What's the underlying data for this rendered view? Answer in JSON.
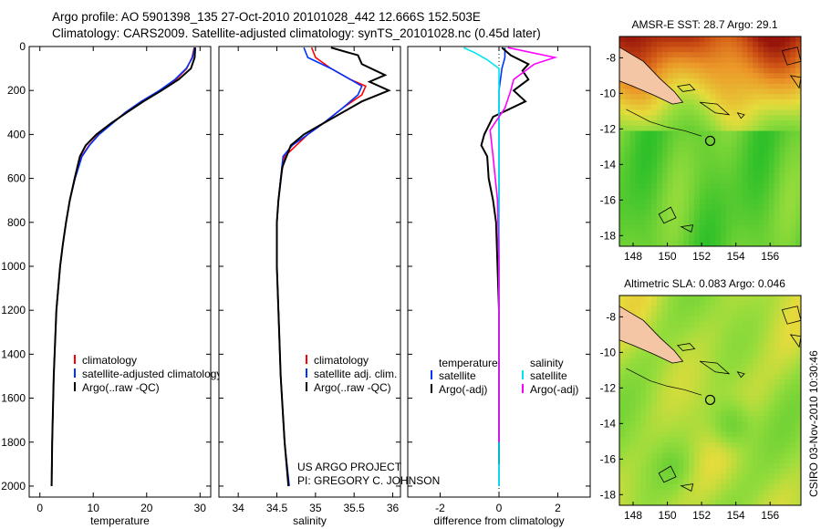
{
  "header": {
    "line1": "Argo profile: AO 5901398_135 27-Oct-2010 20101028_442 12.666S 152.503E",
    "line2": "Climatology: CARS2009. Satellite-adjusted climatology: synTS_20101028.nc (0.45d later)"
  },
  "credit": {
    "line1": "US ARGO PROJECT",
    "line2": "PI: GREGORY C. JOHNSON"
  },
  "side_stamp": "CSIRO 03-Nov-2010 10:30:46",
  "colors": {
    "climatology": "#ff0000",
    "satellite": "#0033ff",
    "argo": "#000000",
    "sal_satellite": "#00e5ee",
    "sal_argo": "#ff00ff",
    "land": "#f5c6a5",
    "marker": "#000000"
  },
  "chart_data": [
    {
      "id": "temperature",
      "type": "line",
      "xlabel": "temperature",
      "ylabel": "",
      "xlim": [
        -2,
        32
      ],
      "ylim": [
        2050,
        0
      ],
      "xticks": [
        0,
        10,
        20,
        30
      ],
      "yticks": [
        0,
        200,
        400,
        600,
        800,
        1000,
        1200,
        1400,
        1600,
        1800,
        2000
      ],
      "legend": [
        "climatology",
        "satellite-adjusted climatology",
        "Argo(..raw -QC)"
      ],
      "legend_placement": "lower-left",
      "series": [
        {
          "name": "climatology",
          "color": "#ff0000",
          "x": [
            28.9,
            28.5,
            27.5,
            25.5,
            22.5,
            19.0,
            16.0,
            13.5,
            11.0,
            9.2,
            7.8,
            6.6,
            5.6,
            4.9,
            4.3,
            3.8,
            3.1,
            2.6,
            2.3,
            2.2
          ],
          "y": [
            5,
            50,
            100,
            150,
            200,
            250,
            300,
            350,
            400,
            450,
            500,
            600,
            700,
            800,
            900,
            1000,
            1200,
            1500,
            1800,
            1950
          ]
        },
        {
          "name": "satellite-adjusted climatology",
          "color": "#0033ff",
          "x": [
            29.0,
            28.6,
            27.4,
            25.3,
            22.4,
            19.0,
            16.0,
            13.6,
            11.1,
            9.3,
            7.9,
            6.6,
            5.6,
            4.9,
            4.3,
            3.8,
            3.1,
            2.6,
            2.3,
            2.2
          ],
          "y": [
            5,
            50,
            100,
            150,
            200,
            250,
            300,
            350,
            400,
            450,
            500,
            600,
            700,
            800,
            900,
            1000,
            1200,
            1500,
            1800,
            2000
          ]
        },
        {
          "name": "Argo(..raw -QC)",
          "color": "#000000",
          "x": [
            29.1,
            29.0,
            28.3,
            26.0,
            22.8,
            19.4,
            16.3,
            13.3,
            10.6,
            8.6,
            7.5,
            6.5,
            5.6,
            4.9,
            4.3,
            3.8,
            3.1,
            2.6,
            2.3,
            2.2
          ],
          "y": [
            5,
            50,
            100,
            150,
            200,
            250,
            300,
            350,
            400,
            450,
            500,
            600,
            700,
            800,
            900,
            1000,
            1200,
            1500,
            1800,
            2000
          ]
        }
      ]
    },
    {
      "id": "salinity",
      "type": "line",
      "xlabel": "salinity",
      "ylabel": "",
      "xlim": [
        33.75,
        36.1
      ],
      "ylim": [
        2050,
        0
      ],
      "xticks": [
        34,
        34.5,
        35,
        35.5,
        36
      ],
      "yticks": [
        0,
        200,
        400,
        600,
        800,
        1000,
        1200,
        1400,
        1600,
        1800,
        2000
      ],
      "legend": [
        "climatology",
        "satellite adj. clim.",
        "Argo(..raw -QC)"
      ],
      "legend_placement": "lower-right",
      "series": [
        {
          "name": "climatology",
          "color": "#ff0000",
          "x": [
            34.95,
            35.0,
            35.2,
            35.45,
            35.65,
            35.6,
            35.35,
            35.1,
            34.9,
            34.75,
            34.6,
            34.55,
            34.52,
            34.5,
            34.5,
            34.52,
            34.55,
            34.6,
            34.65
          ],
          "y": [
            5,
            50,
            100,
            150,
            180,
            220,
            280,
            350,
            400,
            450,
            500,
            600,
            700,
            800,
            1000,
            1200,
            1500,
            1800,
            2000
          ]
        },
        {
          "name": "satellite adj. clim.",
          "color": "#0033ff",
          "x": [
            34.85,
            34.9,
            35.2,
            35.45,
            35.6,
            35.55,
            35.35,
            35.1,
            34.9,
            34.7,
            34.58,
            34.55,
            34.52,
            34.5,
            34.5,
            34.52,
            34.55,
            34.6,
            34.66
          ],
          "y": [
            5,
            50,
            100,
            150,
            180,
            220,
            280,
            350,
            400,
            450,
            500,
            600,
            700,
            800,
            1000,
            1200,
            1500,
            1800,
            2000
          ]
        },
        {
          "name": "Argo(..raw -QC)",
          "color": "#000000",
          "x": [
            35.2,
            35.55,
            35.6,
            35.9,
            35.7,
            35.95,
            35.6,
            35.35,
            35.1,
            34.85,
            34.68,
            34.57,
            34.52,
            34.5,
            34.5,
            34.52,
            34.55,
            34.6,
            34.65
          ],
          "y": [
            5,
            40,
            80,
            130,
            160,
            200,
            250,
            300,
            350,
            400,
            450,
            550,
            700,
            800,
            1000,
            1200,
            1500,
            1800,
            2000
          ]
        }
      ]
    },
    {
      "id": "difference",
      "type": "line",
      "xlabel": "difference from climatology",
      "ylabel": "",
      "xlim": [
        -3.1,
        3.1
      ],
      "ylim": [
        2050,
        0
      ],
      "xticks": [
        -2,
        0,
        2
      ],
      "yticks": [
        0,
        200,
        400,
        600,
        800,
        1000,
        1200,
        1400,
        1600,
        1800,
        2000
      ],
      "legend_groups": [
        {
          "title": "temperature",
          "items": [
            "satellite",
            "Argo(-adj)"
          ]
        },
        {
          "title": "salinity",
          "items": [
            "satellite",
            "Argo(-adj)"
          ]
        }
      ],
      "legend_placement": "lower-center",
      "series": [
        {
          "name": "temperature satellite",
          "color": "#0033ff",
          "x": [
            0.2,
            0.2,
            0.1,
            0.0,
            0.0,
            0.0,
            0.0
          ],
          "y": [
            5,
            50,
            100,
            200,
            400,
            1000,
            2000
          ]
        },
        {
          "name": "temperature Argo(-adj)",
          "color": "#000000",
          "x": [
            0.1,
            0.4,
            1.0,
            0.8,
            1.0,
            0.5,
            0.9,
            -0.2,
            -0.5,
            -0.6,
            -0.4,
            -0.35,
            -0.2,
            -0.1,
            0.0,
            0.0
          ],
          "y": [
            5,
            40,
            80,
            110,
            150,
            200,
            250,
            320,
            400,
            450,
            500,
            600,
            700,
            800,
            1200,
            1900
          ]
        },
        {
          "name": "salinity satellite",
          "color": "#00e5ee",
          "x": [
            -1.2,
            -0.8,
            -0.4,
            0.0,
            0.0,
            0.0,
            0.0,
            0.0
          ],
          "y": [
            5,
            30,
            60,
            100,
            200,
            400,
            1000,
            2000
          ]
        },
        {
          "name": "salinity Argo(-adj)",
          "color": "#ff00ff",
          "x": [
            0.3,
            1.9,
            1.2,
            0.5,
            0.4,
            0.2,
            -0.3,
            -0.2,
            -0.05,
            0.0,
            0.0
          ],
          "y": [
            5,
            50,
            80,
            150,
            200,
            280,
            380,
            500,
            700,
            1000,
            1800
          ]
        }
      ]
    },
    {
      "id": "sst-map",
      "type": "heatmap",
      "title": "AMSR-E SST: 28.7 Argo: 29.1",
      "xticks": [
        148,
        150,
        152,
        154,
        156
      ],
      "yticks": [
        -8,
        -10,
        -12,
        -14,
        -16,
        -18
      ],
      "xlim": [
        147.2,
        157.8
      ],
      "ylim": [
        -18.6,
        -6.8
      ],
      "marker": {
        "lon": 152.5,
        "lat": -12.67
      }
    },
    {
      "id": "sla-map",
      "type": "heatmap",
      "title": "Altimetric SLA: 0.083 Argo: 0.046",
      "xticks": [
        148,
        150,
        152,
        154,
        156
      ],
      "yticks": [
        -8,
        -10,
        -12,
        -14,
        -16,
        -18
      ],
      "xlim": [
        147.2,
        157.8
      ],
      "ylim": [
        -18.6,
        -6.8
      ],
      "marker": {
        "lon": 152.5,
        "lat": -12.67
      }
    }
  ]
}
